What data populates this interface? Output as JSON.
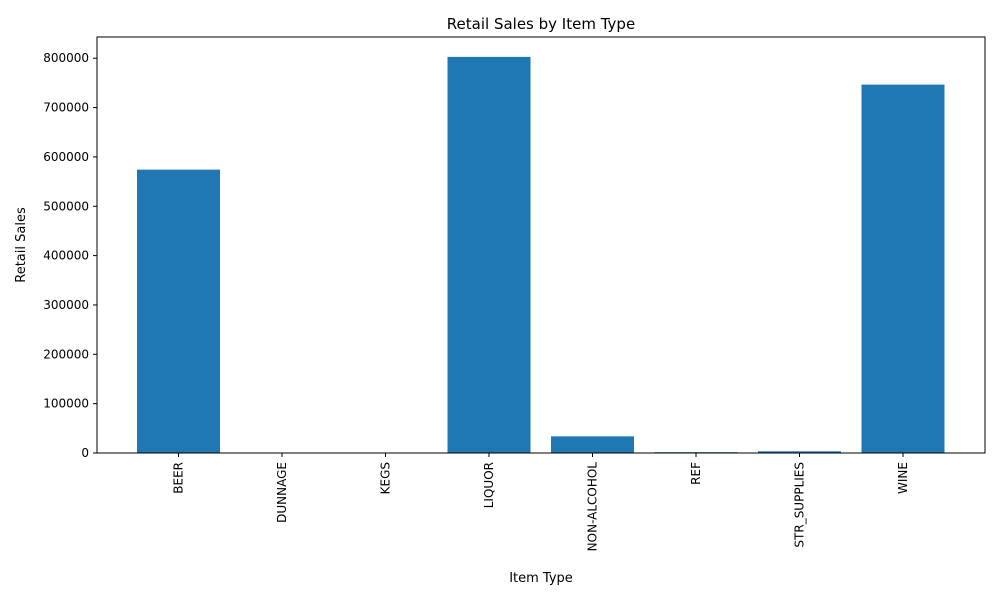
{
  "chart_data": {
    "type": "bar",
    "title": "Retail Sales by Item Type",
    "xlabel": "Item Type",
    "ylabel": "Retail Sales",
    "categories": [
      "BEER",
      "DUNNAGE",
      "KEGS",
      "LIQUOR",
      "NON-ALCOHOL",
      "REF",
      "STR_SUPPLIES",
      "WINE"
    ],
    "values": [
      574220,
      0,
      0,
      802691,
      33760,
      1640,
      3500,
      746498
    ],
    "ylim": [
      0,
      843000
    ],
    "yticks": [
      0,
      100000,
      200000,
      300000,
      400000,
      500000,
      600000,
      700000,
      800000
    ],
    "bar_color": "#1f77b4",
    "grid": false,
    "legend": "none"
  }
}
